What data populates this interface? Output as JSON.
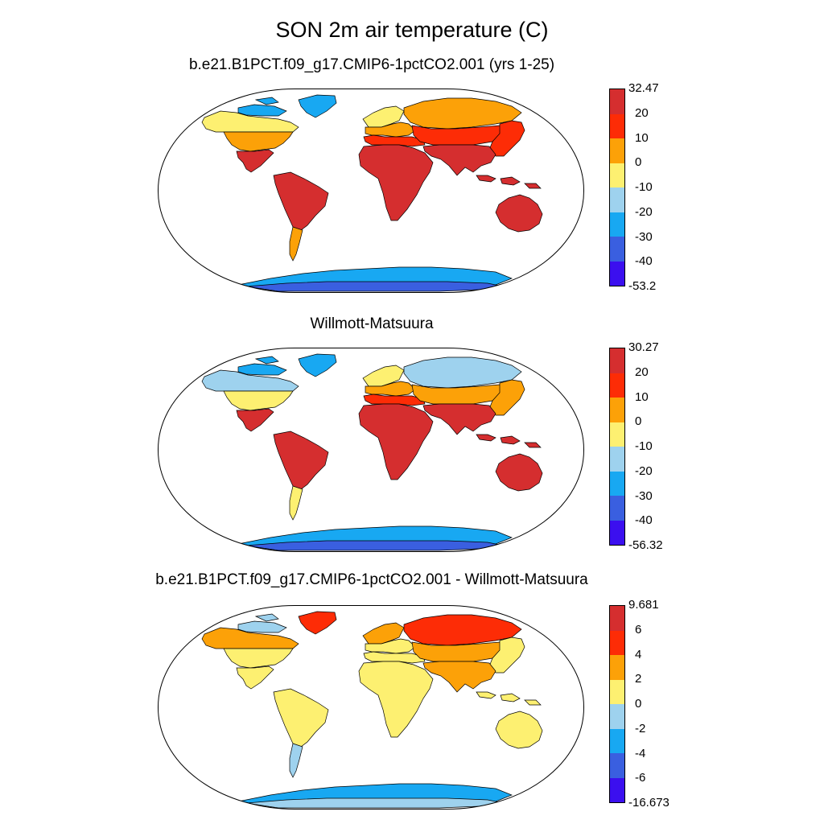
{
  "figure": {
    "title": "SON 2m air temperature (C)"
  },
  "palette": [
    "#3b0fef",
    "#3a5fe0",
    "#18a8f2",
    "#9ed2ee",
    "#fdf071",
    "#fca108",
    "#fd2c06",
    "#d52e2f"
  ],
  "panels": [
    {
      "title": "b.e21.B1PCT.f09_g17.CMIP6-1pctCO2.001 (yrs 1-25)",
      "colorbar": {
        "labels": [
          "32.47",
          "20",
          "10",
          "0",
          "-10",
          "-20",
          "-30",
          "-40",
          "-53.2"
        ]
      },
      "regions": {
        "north_america_north": 4,
        "north_america_mid": 5,
        "north_america_south": 7,
        "canada_arctic": 2,
        "greenland": 2,
        "south_america": 7,
        "patagonia": 5,
        "europe_north": 4,
        "europe_mid": 5,
        "mediterranean": 6,
        "siberia": 5,
        "central_asia": 6,
        "east_asia": 6,
        "south_asia": 7,
        "africa": 7,
        "australia": 7,
        "maritime": 7,
        "antarctica_main": 2,
        "antarctica_east": 1
      }
    },
    {
      "title": "Willmott-Matsuura",
      "colorbar": {
        "labels": [
          "30.27",
          "20",
          "10",
          "0",
          "-10",
          "-20",
          "-30",
          "-40",
          "-56.32"
        ]
      },
      "regions": {
        "north_america_north": 3,
        "north_america_mid": 4,
        "north_america_south": 7,
        "canada_arctic": 2,
        "greenland": 2,
        "south_america": 7,
        "patagonia": 4,
        "europe_north": 4,
        "europe_mid": 5,
        "mediterranean": 6,
        "siberia": 3,
        "central_asia": 5,
        "east_asia": 5,
        "south_asia": 7,
        "africa": 7,
        "australia": 7,
        "maritime": 7,
        "antarctica_main": 2,
        "antarctica_east": 1
      }
    },
    {
      "title": "b.e21.B1PCT.f09_g17.CMIP6-1pctCO2.001 - Willmott-Matsuura",
      "colorbar": {
        "labels": [
          "9.681",
          "6",
          "4",
          "2",
          "0",
          "-2",
          "-4",
          "-6",
          "-16.673"
        ]
      },
      "regions": {
        "north_america_north": 5,
        "north_america_mid": 4,
        "north_america_south": 4,
        "canada_arctic": 3,
        "greenland": 6,
        "south_america": 4,
        "patagonia": 3,
        "europe_north": 5,
        "europe_mid": 4,
        "mediterranean": 4,
        "siberia": 6,
        "central_asia": 5,
        "east_asia": 4,
        "south_asia": 5,
        "africa": 4,
        "australia": 4,
        "maritime": 4,
        "antarctica_main": 2,
        "antarctica_east": 3
      }
    }
  ]
}
